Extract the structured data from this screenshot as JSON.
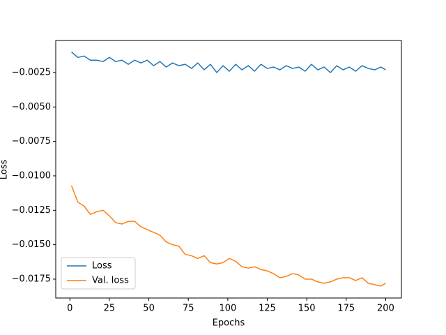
{
  "chart_data": {
    "type": "line",
    "xlabel": "Epochs",
    "ylabel": "Loss",
    "x": [
      1,
      5,
      9,
      13,
      17,
      21,
      25,
      29,
      33,
      37,
      41,
      45,
      49,
      53,
      57,
      61,
      65,
      69,
      73,
      77,
      81,
      85,
      89,
      93,
      97,
      101,
      105,
      109,
      113,
      117,
      121,
      125,
      129,
      133,
      137,
      141,
      145,
      149,
      153,
      157,
      161,
      165,
      169,
      173,
      177,
      181,
      185,
      189,
      193,
      197,
      200
    ],
    "series": [
      {
        "name": "Loss",
        "color": "#1f77b4",
        "values": [
          -0.001,
          -0.0014,
          -0.0013,
          -0.0016,
          -0.0016,
          -0.0017,
          -0.0014,
          -0.0017,
          -0.0016,
          -0.0019,
          -0.0016,
          -0.0018,
          -0.0016,
          -0.002,
          -0.0017,
          -0.0021,
          -0.0018,
          -0.002,
          -0.0019,
          -0.0022,
          -0.0018,
          -0.0023,
          -0.0019,
          -0.0025,
          -0.002,
          -0.0024,
          -0.0019,
          -0.0023,
          -0.002,
          -0.0024,
          -0.0019,
          -0.0022,
          -0.0021,
          -0.0023,
          -0.002,
          -0.0022,
          -0.0021,
          -0.0024,
          -0.0019,
          -0.0023,
          -0.0021,
          -0.0025,
          -0.002,
          -0.0023,
          -0.0021,
          -0.0024,
          -0.002,
          -0.0022,
          -0.0023,
          -0.0021,
          -0.0023
        ]
      },
      {
        "name": "Val. loss",
        "color": "#ff7f0e",
        "values": [
          -0.0107,
          -0.0119,
          -0.0122,
          -0.0128,
          -0.0126,
          -0.0125,
          -0.0129,
          -0.0134,
          -0.0135,
          -0.0133,
          -0.0133,
          -0.0137,
          -0.0139,
          -0.0141,
          -0.0143,
          -0.0148,
          -0.015,
          -0.0151,
          -0.0157,
          -0.0158,
          -0.016,
          -0.0158,
          -0.0163,
          -0.0164,
          -0.0163,
          -0.016,
          -0.0162,
          -0.0166,
          -0.0167,
          -0.0166,
          -0.0168,
          -0.0169,
          -0.0171,
          -0.0174,
          -0.0173,
          -0.0171,
          -0.0172,
          -0.0175,
          -0.0175,
          -0.0177,
          -0.0178,
          -0.0177,
          -0.0175,
          -0.0174,
          -0.0174,
          -0.0176,
          -0.0174,
          -0.0178,
          -0.0179,
          -0.018,
          -0.0178
        ]
      }
    ],
    "xlim": [
      -8.95,
      209.95
    ],
    "xticks": [
      0,
      25,
      50,
      75,
      100,
      125,
      150,
      175,
      200
    ],
    "ylim": [
      -0.01887,
      -0.00017
    ],
    "yticks": [
      {
        "value": -0.0025,
        "label": "−0.0025"
      },
      {
        "value": -0.005,
        "label": "−0.0050"
      },
      {
        "value": -0.0075,
        "label": "−0.0075"
      },
      {
        "value": -0.01,
        "label": "−0.0100"
      },
      {
        "value": -0.0125,
        "label": "−0.0125"
      },
      {
        "value": -0.015,
        "label": "−0.0150"
      },
      {
        "value": -0.0175,
        "label": "−0.0175"
      }
    ],
    "grid": false,
    "legend": "lower left"
  }
}
